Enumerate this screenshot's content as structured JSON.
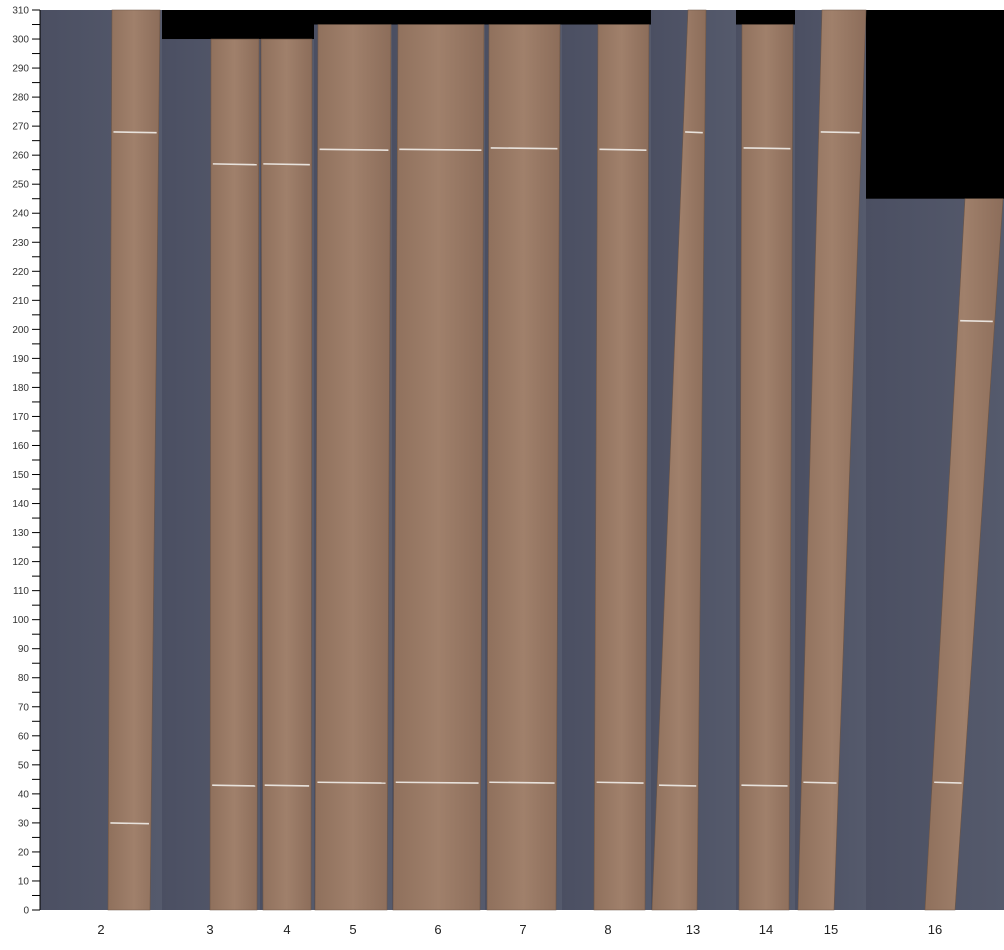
{
  "chart_data": {
    "type": "image-strip",
    "ylim": [
      0,
      310
    ],
    "y_ticks_major_step": 10,
    "y_ticks_minor_step": 5,
    "grid": false,
    "colors": {
      "background_plate": "#4f5366",
      "board": "#9a7a66",
      "empty": "#000000",
      "cut_line": "#e8e2dc"
    },
    "columns": [
      {
        "label": "2",
        "plate_top": 310,
        "board_top": 310,
        "cuts": [
          268,
          30
        ]
      },
      {
        "label": "3",
        "plate_top": 300,
        "board_top": 300,
        "cuts": [
          257,
          43
        ]
      },
      {
        "label": "4",
        "plate_top": 300,
        "board_top": 300,
        "cuts": [
          257,
          43
        ]
      },
      {
        "label": "5",
        "plate_top": 305,
        "board_top": 305,
        "cuts": [
          262,
          44
        ]
      },
      {
        "label": "6",
        "plate_top": 305,
        "board_top": 305,
        "cuts": [
          262,
          44
        ]
      },
      {
        "label": "7",
        "plate_top": 305,
        "board_top": 305,
        "cuts": [
          262.5,
          44
        ]
      },
      {
        "label": "8",
        "plate_top": 305,
        "board_top": 305,
        "cuts": [
          262,
          44
        ]
      },
      {
        "label": "13",
        "plate_top": 310,
        "board_top": 310,
        "cuts": [
          268,
          43
        ]
      },
      {
        "label": "14",
        "plate_top": 305,
        "board_top": 305,
        "cuts": [
          262.5,
          43
        ]
      },
      {
        "label": "15",
        "plate_top": 310,
        "board_top": 310,
        "cuts": [
          268,
          44
        ]
      },
      {
        "label": "16",
        "plate_top": 245,
        "board_top": 245,
        "cuts": [
          203,
          44
        ]
      }
    ]
  }
}
